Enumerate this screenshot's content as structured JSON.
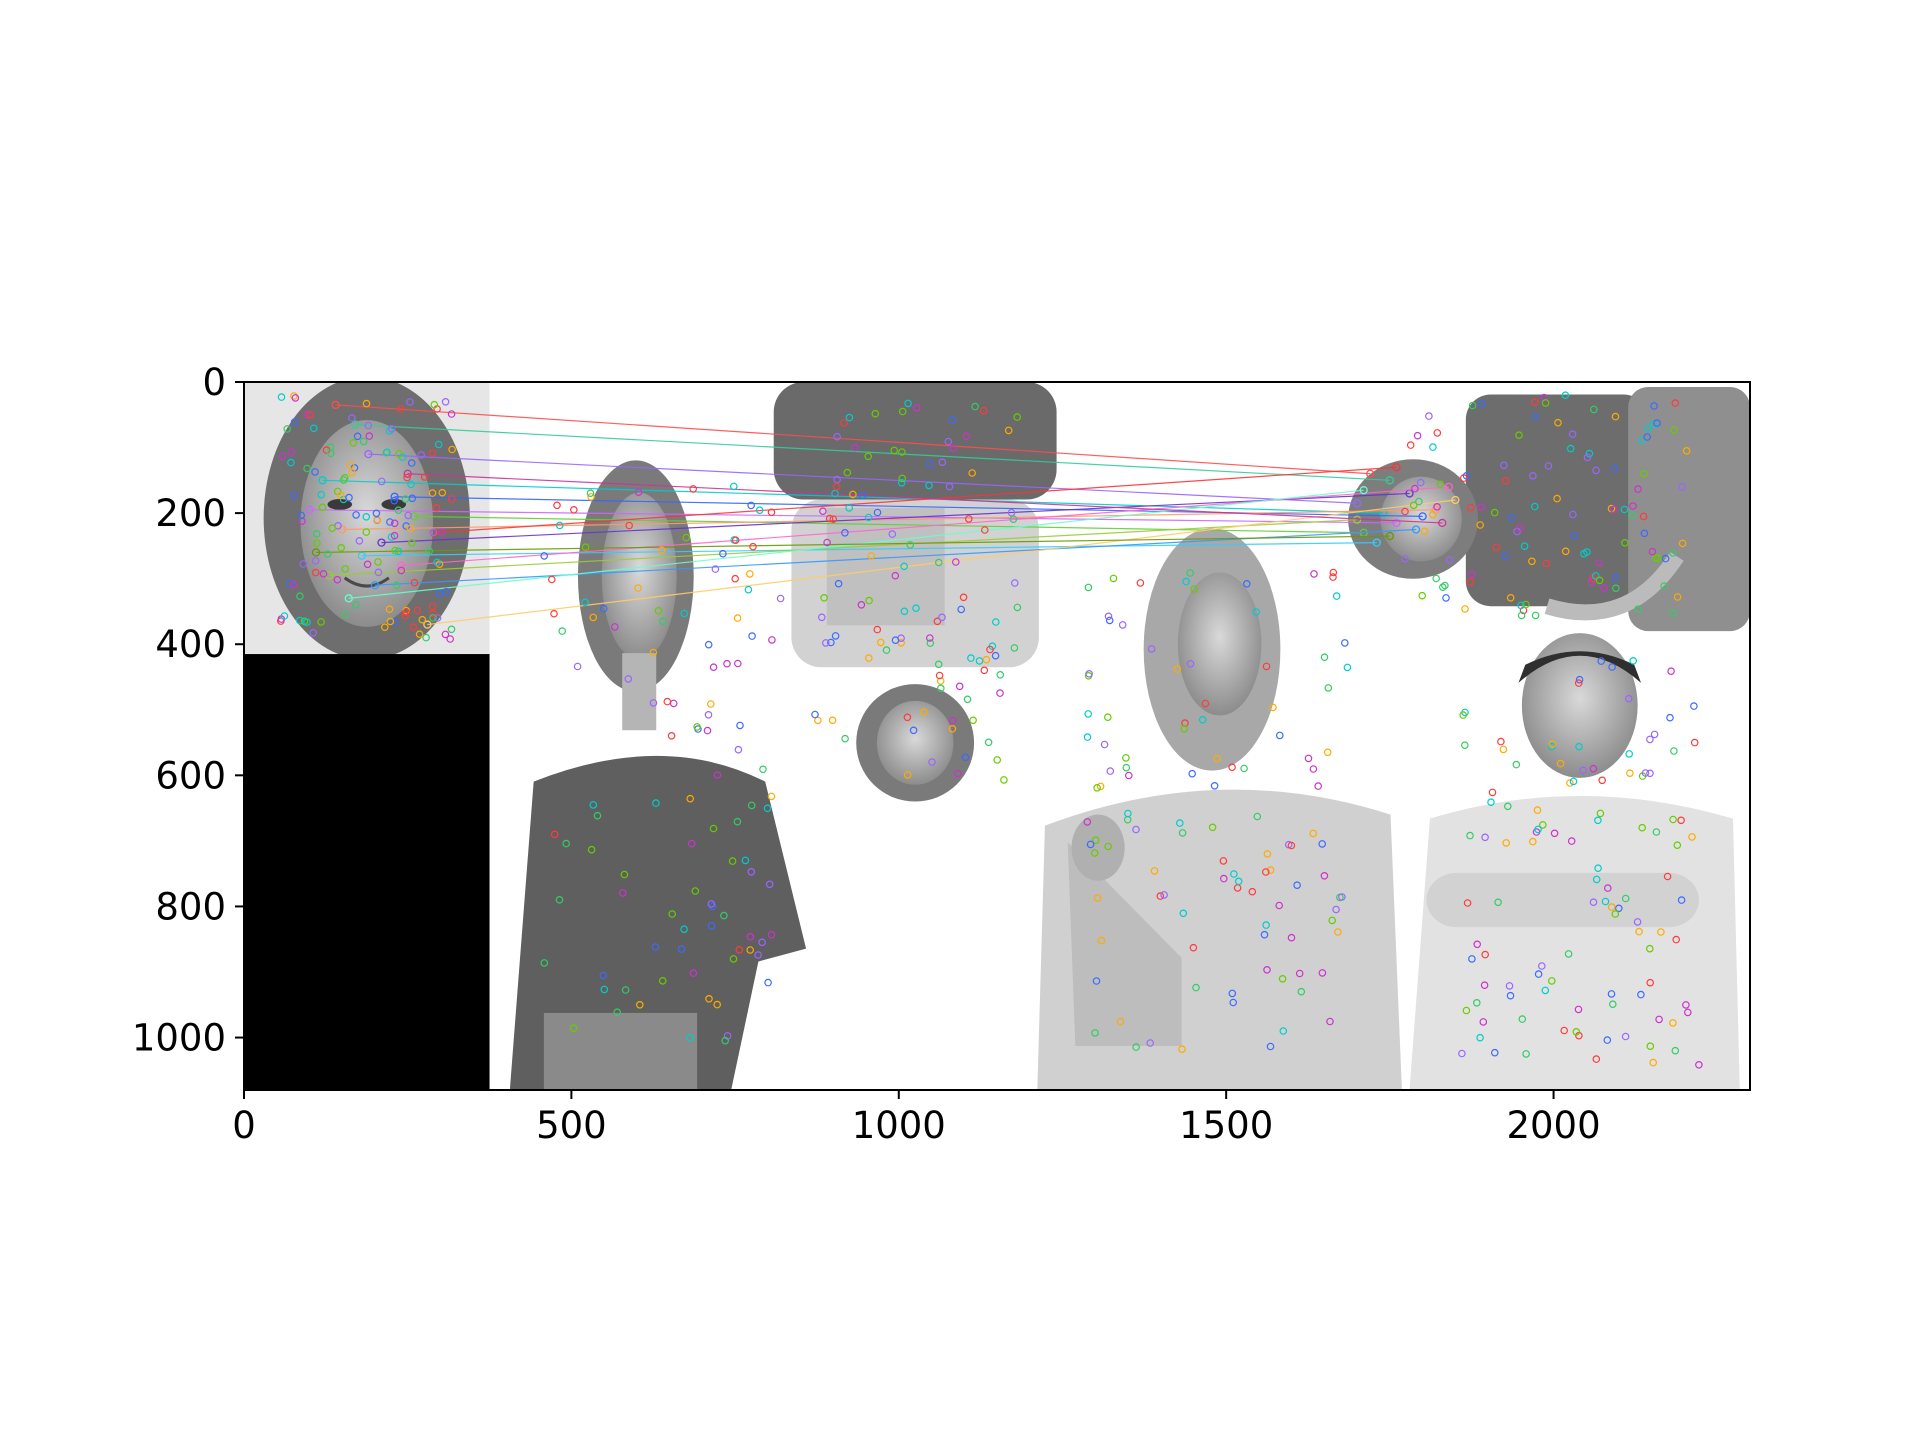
{
  "chart_data": {
    "type": "image",
    "title": "",
    "xlabel": "",
    "ylabel": "",
    "xlim": [
      0,
      2300
    ],
    "ylim": [
      1080,
      0
    ],
    "x_ticks": [
      0,
      500,
      1000,
      1500,
      2000
    ],
    "y_ticks": [
      0,
      200,
      400,
      600,
      800,
      1000
    ],
    "grid": false,
    "legend": "none",
    "panels": [
      {
        "name": "query face",
        "extent": [
          0,
          375,
          0,
          415
        ]
      },
      {
        "name": "black padding",
        "extent": [
          0,
          375,
          415,
          1080
        ],
        "color": "#000000"
      },
      {
        "name": "woman in t-shirt",
        "extent": [
          380,
          900,
          100,
          1080
        ]
      },
      {
        "name": "inverted person",
        "extent": [
          800,
          1250,
          0,
          640
        ]
      },
      {
        "name": "woman thumbs up",
        "extent": [
          1200,
          1780,
          240,
          1080
        ]
      },
      {
        "name": "rotated woman",
        "extent": [
          1680,
          2300,
          0,
          380
        ]
      },
      {
        "name": "man arms crossed",
        "extent": [
          1780,
          2300,
          390,
          1080
        ]
      }
    ],
    "matches": [
      {
        "x1": 140,
        "y1": 35,
        "x2": 1720,
        "y2": 140,
        "color": "#ff4d4d"
      },
      {
        "x1": 170,
        "y1": 65,
        "x2": 1750,
        "y2": 150,
        "color": "#33cc99"
      },
      {
        "x1": 190,
        "y1": 110,
        "x2": 1700,
        "y2": 185,
        "color": "#9966ff"
      },
      {
        "x1": 120,
        "y1": 150,
        "x2": 1740,
        "y2": 200,
        "color": "#00cccc"
      },
      {
        "x1": 230,
        "y1": 175,
        "x2": 1800,
        "y2": 205,
        "color": "#3366ff"
      },
      {
        "x1": 100,
        "y1": 195,
        "x2": 1760,
        "y2": 215,
        "color": "#cc66ff"
      },
      {
        "x1": 260,
        "y1": 205,
        "x2": 1710,
        "y2": 230,
        "color": "#66cc33"
      },
      {
        "x1": 150,
        "y1": 225,
        "x2": 1820,
        "y2": 195,
        "color": "#ff9966"
      },
      {
        "x1": 210,
        "y1": 245,
        "x2": 1780,
        "y2": 170,
        "color": "#6633cc"
      },
      {
        "x1": 180,
        "y1": 265,
        "x2": 1730,
        "y2": 245,
        "color": "#33ccff"
      },
      {
        "x1": 240,
        "y1": 280,
        "x2": 1840,
        "y2": 160,
        "color": "#ff66cc"
      },
      {
        "x1": 130,
        "y1": 295,
        "x2": 1700,
        "y2": 210,
        "color": "#99cc33"
      },
      {
        "x1": 290,
        "y1": 230,
        "x2": 1760,
        "y2": 130,
        "color": "#ff3333"
      },
      {
        "x1": 200,
        "y1": 310,
        "x2": 1790,
        "y2": 225,
        "color": "#3399ff"
      },
      {
        "x1": 280,
        "y1": 370,
        "x2": 1850,
        "y2": 180,
        "color": "#ffcc66"
      },
      {
        "x1": 160,
        "y1": 330,
        "x2": 1710,
        "y2": 165,
        "color": "#66ffcc"
      },
      {
        "x1": 250,
        "y1": 140,
        "x2": 1830,
        "y2": 215,
        "color": "#cc3399"
      },
      {
        "x1": 110,
        "y1": 260,
        "x2": 1750,
        "y2": 235,
        "color": "#669900"
      }
    ]
  }
}
